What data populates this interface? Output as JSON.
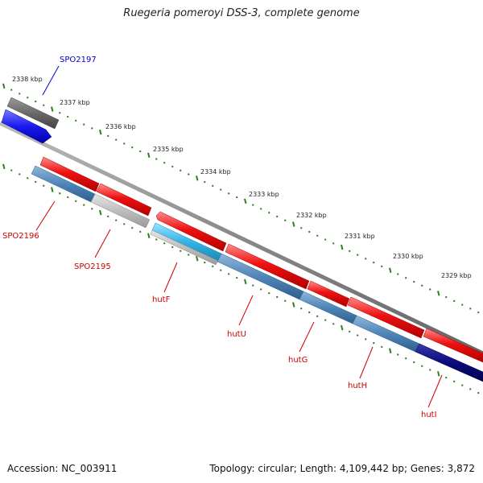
{
  "title": "Ruegeria pomeroyi DSS-3, complete genome",
  "footer": {
    "accession": "Accession: NC_003911",
    "topology": "Topology: circular; Length: 4,109,442 bp; Genes: 3,872"
  },
  "scale_labels": [
    "2338 kbp",
    "2337 kbp",
    "2336 kbp",
    "2335 kbp",
    "2334 kbp",
    "2333 kbp",
    "2332 kbp",
    "2331 kbp",
    "2330 kbp",
    "2329 kbp"
  ],
  "gene_labels": [
    "SPO2197",
    "SPO2196",
    "SPO2195",
    "hutF",
    "hutU",
    "hutG",
    "hutH",
    "hutI"
  ],
  "colors": {
    "backbone": "#888888",
    "tick": "#2e7d1e",
    "forward_gene": "#ee1111",
    "reverse_gene": "#4f86b8",
    "pseudo_gene": "#bdbdbd",
    "dark_gene": "#6a6a6a",
    "cyan_gene": "#33b5e5",
    "navy_gene": "#0a0a7a",
    "blue_gene": "#1a1aee",
    "label_red": "#cc0000",
    "label_blue": "#0000cc"
  }
}
